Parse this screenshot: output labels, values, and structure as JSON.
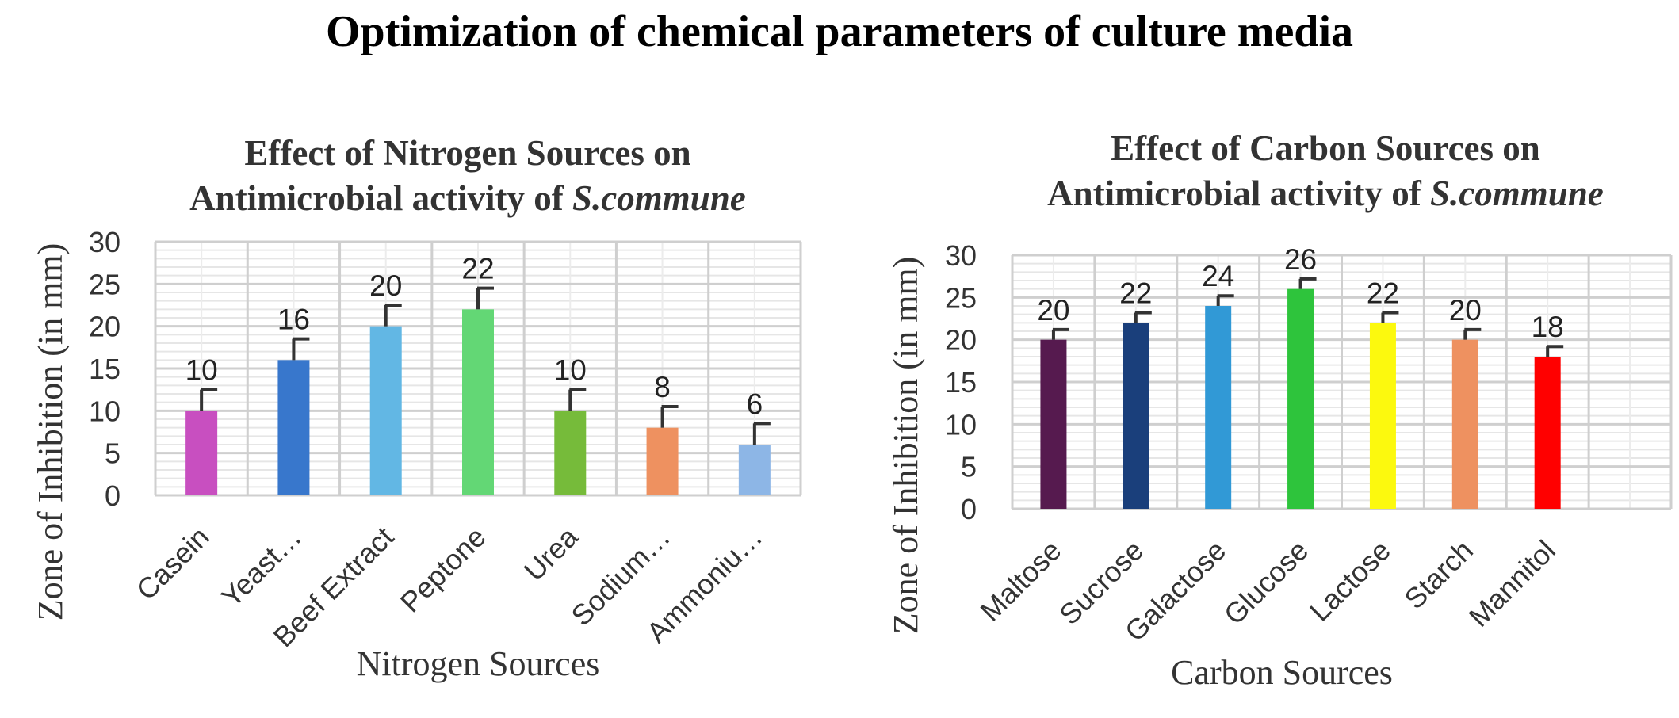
{
  "page": {
    "title": "Optimization of chemical parameters of culture media"
  },
  "chart_data": [
    {
      "type": "bar",
      "title_line1": "Effect of Nitrogen Sources on",
      "title_line2_prefix": "Antimicrobial activity of ",
      "title_species": "S.commune",
      "xlabel": "Nitrogen Sources",
      "ylabel": "Zone of Inhibition (in mm)",
      "ylim": [
        0,
        30
      ],
      "yticks": [
        0,
        5,
        10,
        15,
        20,
        25,
        30
      ],
      "categories": [
        "Casein",
        "Yeast…",
        "Beef Extract",
        "Peptone",
        "Urea",
        "Sodium…",
        "Ammoniu…"
      ],
      "values": [
        10,
        16,
        20,
        22,
        10,
        8,
        6
      ],
      "errors": [
        2.5,
        2.5,
        2.5,
        2.5,
        2.5,
        2.5,
        2.5
      ],
      "colors": [
        "#c84fc0",
        "#3877cc",
        "#62b7e4",
        "#63d775",
        "#76bb3a",
        "#ee9160",
        "#8db6e6"
      ],
      "grid": true,
      "legend": "none"
    },
    {
      "type": "bar",
      "title_line1": "Effect of Carbon Sources on",
      "title_line2_prefix": "Antimicrobial activity of ",
      "title_species": "S.commune",
      "xlabel": "Carbon Sources",
      "ylabel": "Zone of Inhibition (in mm)",
      "ylim": [
        0,
        30
      ],
      "yticks": [
        0,
        5,
        10,
        15,
        20,
        25,
        30
      ],
      "categories": [
        "Maltose",
        "Sucrose",
        "Galactose",
        "Glucose",
        "Lactose",
        "Starch",
        "Mannitol",
        ""
      ],
      "values": [
        20,
        22,
        24,
        26,
        22,
        20,
        18,
        null
      ],
      "errors": [
        1.2,
        1.2,
        1.2,
        1.2,
        1.2,
        1.2,
        1.2,
        null
      ],
      "colors": [
        "#561a4f",
        "#1a3f7b",
        "#3199d6",
        "#2ec43c",
        "#fcf90e",
        "#ee9160",
        "#ff0000",
        "#ffffff"
      ],
      "grid": true,
      "legend": "none"
    }
  ]
}
